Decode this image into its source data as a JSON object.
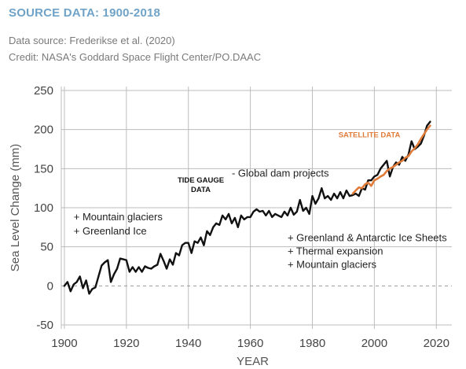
{
  "header": {
    "title": "SOURCE DATA: 1900-2018",
    "source": "Data source: Frederikse et al. (2020)",
    "credit": "Credit: NASA's Goddard Space Flight Center/PO.DAAC"
  },
  "colors": {
    "title": "#6fa3c7",
    "tide": "#111111",
    "satellite": "#e07b39",
    "grid": "#bdbdbd",
    "zero_line": "#9a9a9a"
  },
  "chart_data": {
    "type": "line",
    "xlabel": "YEAR",
    "ylabel": "Sea Level Change (mm)",
    "xlim": [
      1899,
      2025
    ],
    "ylim": [
      -55,
      255
    ],
    "xticks": [
      1900,
      1920,
      1940,
      1960,
      1980,
      2000,
      2020
    ],
    "yticks": [
      -50,
      0,
      50,
      100,
      150,
      200,
      250
    ],
    "grid": true,
    "zero_line": "dashed",
    "series": [
      {
        "name": "TIDE GAUGE DATA",
        "color": "#111111",
        "x": [
          1900,
          1901,
          1902,
          1903,
          1904,
          1905,
          1906,
          1907,
          1908,
          1909,
          1910,
          1911,
          1912,
          1913,
          1914,
          1915,
          1916,
          1917,
          1918,
          1919,
          1920,
          1921,
          1922,
          1923,
          1924,
          1925,
          1926,
          1927,
          1928,
          1929,
          1930,
          1931,
          1932,
          1933,
          1934,
          1935,
          1936,
          1937,
          1938,
          1939,
          1940,
          1941,
          1942,
          1943,
          1944,
          1945,
          1946,
          1947,
          1948,
          1949,
          1950,
          1951,
          1952,
          1953,
          1954,
          1955,
          1956,
          1957,
          1958,
          1959,
          1960,
          1961,
          1962,
          1963,
          1964,
          1965,
          1966,
          1967,
          1968,
          1969,
          1970,
          1971,
          1972,
          1973,
          1974,
          1975,
          1976,
          1977,
          1978,
          1979,
          1980,
          1981,
          1982,
          1983,
          1984,
          1985,
          1986,
          1987,
          1988,
          1989,
          1990,
          1991,
          1992,
          1993,
          1994,
          1995,
          1996,
          1997,
          1998,
          1999,
          2000,
          2001,
          2002,
          2003,
          2004,
          2005,
          2006,
          2007,
          2008,
          2009,
          2010,
          2011,
          2012,
          2013,
          2014,
          2015,
          2016,
          2017,
          2018
        ],
        "y": [
          0,
          5,
          -7,
          2,
          5,
          12,
          -3,
          7,
          -10,
          -4,
          -2,
          12,
          26,
          30,
          33,
          5,
          15,
          22,
          35,
          34,
          33,
          18,
          24,
          18,
          24,
          18,
          25,
          23,
          22,
          25,
          27,
          41,
          32,
          22,
          34,
          27,
          42,
          39,
          52,
          55,
          55,
          42,
          57,
          55,
          62,
          52,
          70,
          65,
          75,
          80,
          78,
          90,
          85,
          92,
          80,
          87,
          75,
          90,
          85,
          88,
          88,
          95,
          98,
          95,
          96,
          90,
          96,
          88,
          92,
          90,
          88,
          95,
          90,
          100,
          91,
          95,
          110,
          96,
          100,
          92,
          115,
          105,
          112,
          125,
          112,
          115,
          110,
          118,
          112,
          120,
          112,
          122,
          115,
          116,
          118,
          115,
          125,
          123,
          135,
          135,
          140,
          142,
          150,
          155,
          160,
          140,
          152,
          158,
          155,
          165,
          160,
          168,
          185,
          175,
          178,
          182,
          192,
          205,
          210
        ]
      },
      {
        "name": "SATELLITE DATA",
        "color": "#e07b39",
        "x": [
          1993,
          1994,
          1995,
          1996,
          1997,
          1998,
          1999,
          2000,
          2001,
          2002,
          2003,
          2004,
          2005,
          2006,
          2007,
          2008,
          2009,
          2010,
          2011,
          2012,
          2013,
          2014,
          2015,
          2016,
          2017,
          2018
        ],
        "y": [
          118,
          122,
          126,
          125,
          130,
          132,
          128,
          135,
          137,
          140,
          142,
          147,
          150,
          152,
          155,
          158,
          160,
          164,
          166,
          172,
          176,
          181,
          188,
          194,
          200,
          205
        ]
      }
    ],
    "annotations": [
      {
        "label": "TIDE GAUGE",
        "x": 1944,
        "y": 132,
        "line2": "DATA"
      },
      {
        "label": "- Global dam projects",
        "x": 1954,
        "y": 140
      },
      {
        "label": "+ Mountain glaciers",
        "x": 1903,
        "y": 84
      },
      {
        "label": "+ Greenland Ice",
        "x": 1903,
        "y": 66
      },
      {
        "label": "+ Greenland & Antarctic Ice Sheets",
        "x": 1972,
        "y": 57
      },
      {
        "label": "+ Thermal expansion",
        "x": 1972,
        "y": 40
      },
      {
        "label": "+ Mountain glaciers",
        "x": 1972,
        "y": 23
      },
      {
        "label": "SATELLITE DATA",
        "x": 1994,
        "y": 190
      }
    ]
  }
}
